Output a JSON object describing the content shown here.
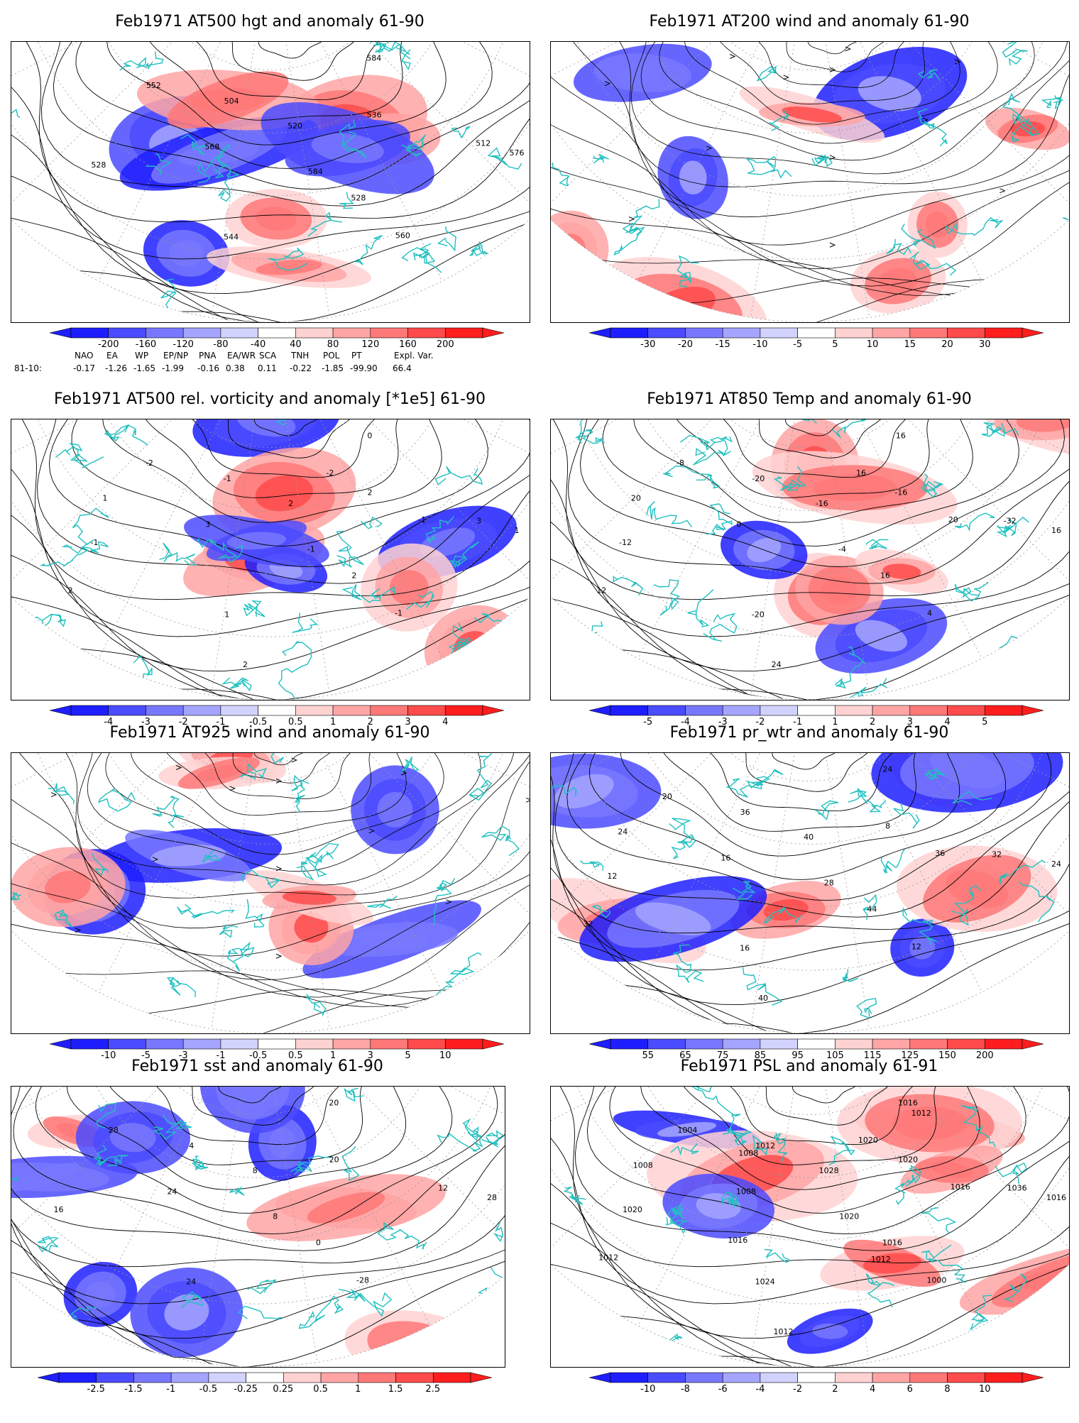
{
  "panels": [
    {
      "id": "p1",
      "title": "Feb1971 AT500 hgt and anomaly 61-90",
      "kind": "contour",
      "labels": [
        "584",
        "528",
        "504",
        "512",
        "520",
        "528",
        "536",
        "544",
        "552",
        "560",
        "568",
        "576",
        "584"
      ],
      "colorbar": [
        "-200",
        "-160",
        "-120",
        "-80",
        "-40",
        "40",
        "80",
        "120",
        "160",
        "200"
      ]
    },
    {
      "id": "p2",
      "title": "Feb1971 AT200 wind and anomaly 61-90",
      "kind": "stream",
      "labels": [],
      "colorbar": [
        "-30",
        "-20",
        "-15",
        "-10",
        "-5",
        "5",
        "10",
        "15",
        "20",
        "30"
      ]
    },
    {
      "id": "p3",
      "title": "Feb1971 AT500 rel. vorticity and anomaly [*1e5] 61-90",
      "kind": "contour",
      "labels": [
        "0",
        "2",
        "-1",
        "3",
        "2",
        "-1",
        "2",
        "1",
        "-2",
        "-1",
        "3",
        "1",
        "-1",
        "2",
        "-1",
        "2",
        "1",
        "-2"
      ],
      "colorbar": [
        "-4",
        "-3",
        "-2",
        "-1",
        "-0.5",
        "0.5",
        "1",
        "2",
        "3",
        "4"
      ]
    },
    {
      "id": "p4",
      "title": "Feb1971 AT850 Temp and anomaly 61-90",
      "kind": "contour",
      "labels": [
        "16",
        "16",
        "-20",
        "-32",
        "-16",
        "-12",
        "-16",
        "-20",
        "-8",
        "4",
        "0",
        "16",
        "-4",
        "12",
        "20",
        "24",
        "20",
        "16"
      ],
      "colorbar": [
        "-5",
        "-4",
        "-3",
        "-2",
        "-1",
        "1",
        "2",
        "3",
        "4",
        "5"
      ]
    },
    {
      "id": "p5",
      "title": "Feb1971 AT925 wind and anomaly 61-90",
      "kind": "stream",
      "labels": [],
      "colorbar": [
        "-10",
        "-5",
        "-3",
        "-1",
        "-0.5",
        "0.5",
        "1",
        "3",
        "5",
        "10"
      ]
    },
    {
      "id": "p6",
      "title": "Feb1971 pr_wtr and anomaly 61-90",
      "kind": "contour",
      "labels": [
        "24",
        "44",
        "36",
        "32",
        "40",
        "12",
        "8",
        "16",
        "20",
        "12",
        "16",
        "24",
        "28",
        "32",
        "36",
        "40",
        "24"
      ],
      "colorbar": [
        "55",
        "65",
        "75",
        "85",
        "95",
        "105",
        "115",
        "125",
        "150",
        "200"
      ]
    },
    {
      "id": "p7",
      "title": "Feb1971 sst and anomaly 61-90",
      "kind": "contour",
      "labels": [
        "20",
        "0",
        "4",
        "12",
        "8",
        "16",
        "20",
        "24",
        "28",
        "-28",
        "24",
        "28",
        "8"
      ],
      "colorbar": [
        "-2.5",
        "-1.5",
        "-1",
        "-0.5",
        "-0.25",
        "0.25",
        "0.5",
        "1",
        "1.5",
        "2.5"
      ]
    },
    {
      "id": "p8",
      "title": "Feb1971 PSL and anomaly 61-91",
      "kind": "contour",
      "labels": [
        "1016",
        "1016",
        "1012",
        "1036",
        "1028",
        "1020",
        "1020",
        "1024",
        "1004",
        "1000",
        "1008",
        "1016",
        "1020",
        "1012",
        "1016",
        "1012",
        "1008",
        "1020",
        "1016",
        "1012",
        "1012",
        "1008"
      ],
      "colorbar": [
        "-10",
        "-8",
        "-6",
        "-4",
        "-2",
        "2",
        "4",
        "6",
        "8",
        "10"
      ]
    }
  ],
  "indices": {
    "headers": [
      "NAO",
      "EA",
      "WP",
      "EP/NP",
      "PNA",
      "EA/WR",
      "SCA",
      "TNH",
      "POL",
      "PT",
      "Expl. Var."
    ],
    "row_label": "81-10:",
    "values": [
      "-0.17",
      "-1.26",
      "-1.65",
      "-1.99",
      "-0.16",
      "0.38",
      "0.11",
      "-0.22",
      "-1.85",
      "-99.90",
      "66.4"
    ]
  },
  "colors": {
    "cool": [
      "#1e1eff",
      "#4b4bff",
      "#7878ff",
      "#a5a5ff",
      "#d2d2ff"
    ],
    "warm": [
      "#ffd2d2",
      "#ffa5a5",
      "#ff7878",
      "#ff4b4b",
      "#ff1e1e"
    ],
    "coast": "#20c0c0"
  }
}
